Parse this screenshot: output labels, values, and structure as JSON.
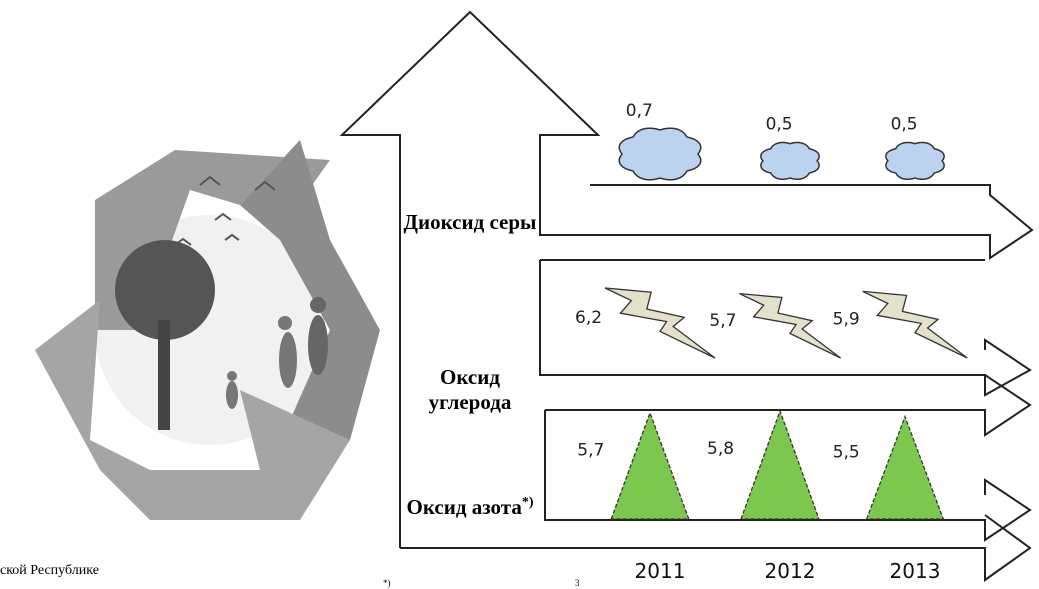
{
  "chart_data": {
    "type": "pictogram",
    "categories": [
      "2011",
      "2012",
      "2013"
    ],
    "series": [
      {
        "name": "Диоксид серы",
        "values": [
          0.7,
          0.5,
          0.5
        ],
        "value_labels": [
          "0,7",
          "0,5",
          "0,5"
        ],
        "color": "#bcd3f0"
      },
      {
        "name": "Оксид углерода",
        "values": [
          6.2,
          5.7,
          5.9
        ],
        "value_labels": [
          "6,2",
          "5,7",
          "5,9"
        ],
        "color": "#e4e1c9"
      },
      {
        "name": "Оксид азота",
        "name_mark": "*)",
        "values": [
          5.7,
          5.8,
          5.5
        ],
        "value_labels": [
          "5,7",
          "5,8",
          "5,5"
        ],
        "color": "#7cc84e"
      }
    ],
    "note_left": "ской Республике",
    "note_bottom": "*)",
    "note_bottom_sup": "3"
  }
}
